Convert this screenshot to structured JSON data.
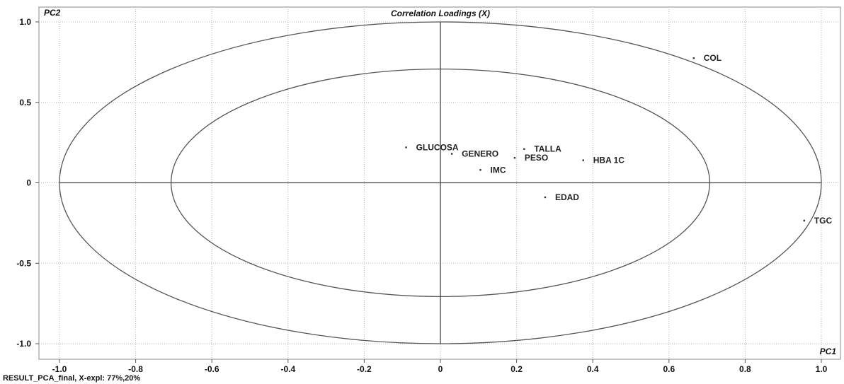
{
  "chart_data": {
    "type": "scatter",
    "title": "Correlation Loadings (X)",
    "xlabel": "PC1",
    "ylabel": "PC2",
    "xlim": [
      -1.0,
      1.0
    ],
    "ylim": [
      -1.0,
      1.0
    ],
    "x_ticks": [
      "-1.0",
      "-0.8",
      "-0.6",
      "-0.4",
      "-0.2",
      "0",
      "0.2",
      "0.4",
      "0.6",
      "0.8",
      "1.0"
    ],
    "y_ticks": [
      "1.0",
      "0.5",
      "0",
      "-0.5",
      "-1.0"
    ],
    "grid": true,
    "circles": [
      1.0,
      0.707
    ],
    "points": [
      {
        "label": "GLUCOSA",
        "x": -0.09,
        "y": 0.22
      },
      {
        "label": "GENERO",
        "x": 0.03,
        "y": 0.18
      },
      {
        "label": "IMC",
        "x": 0.105,
        "y": 0.08
      },
      {
        "label": "PESO",
        "x": 0.195,
        "y": 0.155
      },
      {
        "label": "TALLA",
        "x": 0.22,
        "y": 0.21
      },
      {
        "label": "HBA 1C",
        "x": 0.375,
        "y": 0.14
      },
      {
        "label": "EDAD",
        "x": 0.275,
        "y": -0.09
      },
      {
        "label": "COL",
        "x": 0.665,
        "y": 0.775
      },
      {
        "label": "TGC",
        "x": 0.955,
        "y": -0.235
      }
    ]
  },
  "footer": "RESULT_PCA_final, X-expl: 77%,20%"
}
